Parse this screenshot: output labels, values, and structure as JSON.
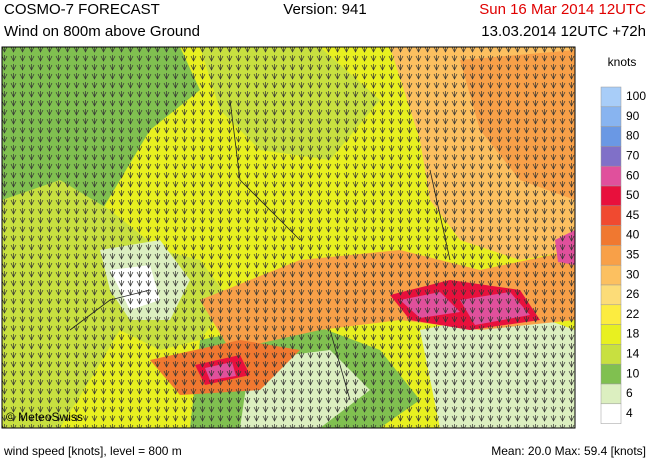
{
  "header": {
    "title": "COSMO-7 FORECAST",
    "version": "Version: 941",
    "valid_time": "Sun 16 Mar 2014 12UTC",
    "subtitle": "Wind on 800m above Ground",
    "run": "13.03.2014 12UTC +72h"
  },
  "map": {
    "credit": "© MeteoSwiss"
  },
  "legend": {
    "title": "knots",
    "levels": [
      100,
      90,
      80,
      70,
      60,
      50,
      45,
      40,
      35,
      30,
      26,
      22,
      18,
      14,
      10,
      6,
      4
    ],
    "colors": [
      "#a8cdf8",
      "#88b4f0",
      "#6a98e4",
      "#8070c8",
      "#e0509c",
      "#e8103c",
      "#f04a30",
      "#f07830",
      "#f8a048",
      "#fcc060",
      "#fcdc78",
      "#fcec40",
      "#e8f020",
      "#c8e040",
      "#80c050",
      "#dcefc0",
      "#ffffff"
    ]
  },
  "footer": {
    "left": "wind speed [knots], level = 800 m",
    "right": "Mean:  20.0  Max:  59.4 [knots]"
  }
}
